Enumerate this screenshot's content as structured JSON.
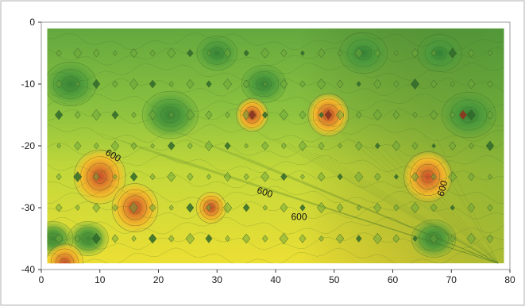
{
  "chart_data": {
    "type": "heatmap",
    "subtype": "filled-contour",
    "title": "",
    "xlabel": "",
    "ylabel": "",
    "xlim": [
      0,
      80
    ],
    "ylim": [
      -40,
      0
    ],
    "x_ticks": [
      0,
      10,
      20,
      30,
      40,
      50,
      60,
      70,
      80
    ],
    "y_ticks": [
      0,
      -10,
      -20,
      -30,
      -40
    ],
    "x_tick_labels": [
      "0",
      "10",
      "20",
      "30",
      "40",
      "50",
      "60",
      "70",
      "80"
    ],
    "y_tick_labels": [
      "0",
      "-10",
      "-20",
      "-30",
      "-40"
    ],
    "grid": false,
    "legend": "none",
    "colorscale": [
      "#3c8c3a",
      "#5aa53e",
      "#86bf3f",
      "#b9d43a",
      "#e8e22e",
      "#f3c52a",
      "#e5872a",
      "#c8502a"
    ],
    "data_extent": {
      "x": [
        1,
        79
      ],
      "y": [
        -39,
        -1
      ]
    },
    "contour_labels": [
      {
        "text": "600",
        "x": 12,
        "y": -22,
        "angle": 30
      },
      {
        "text": "600",
        "x": 38,
        "y": -28,
        "angle": 18
      },
      {
        "text": "600",
        "x": 44,
        "y": -32,
        "angle": 0
      },
      {
        "text": "600",
        "x": 69,
        "y": -27,
        "angle": -75
      }
    ],
    "hotspots": [
      {
        "x": 10,
        "y": -25,
        "intensity": 1.0
      },
      {
        "x": 16,
        "y": -30,
        "intensity": 0.85
      },
      {
        "x": 66,
        "y": -25,
        "intensity": 0.9
      },
      {
        "x": 49,
        "y": -15,
        "intensity": 0.7
      },
      {
        "x": 4,
        "y": -39,
        "intensity": 0.6
      },
      {
        "x": 36,
        "y": -15,
        "intensity": 0.45
      },
      {
        "x": 29,
        "y": -30,
        "intensity": 0.4
      }
    ],
    "lows": [
      {
        "x": 5,
        "y": -10,
        "intensity": 0.8
      },
      {
        "x": 22,
        "y": -15,
        "intensity": 0.9
      },
      {
        "x": 73,
        "y": -15,
        "intensity": 0.85
      },
      {
        "x": 38,
        "y": -10,
        "intensity": 0.6
      },
      {
        "x": 55,
        "y": -5,
        "intensity": 0.7
      },
      {
        "x": 68,
        "y": -5,
        "intensity": 0.6
      },
      {
        "x": 30,
        "y": -5,
        "intensity": 0.5
      },
      {
        "x": 8,
        "y": -35,
        "intensity": 0.5
      },
      {
        "x": 67,
        "y": -35,
        "intensity": 0.6
      },
      {
        "x": 2,
        "y": -35,
        "intensity": 0.5
      }
    ],
    "diamond_rows": [
      -5,
      -10,
      -15,
      -20,
      -25,
      -30,
      -35
    ]
  }
}
